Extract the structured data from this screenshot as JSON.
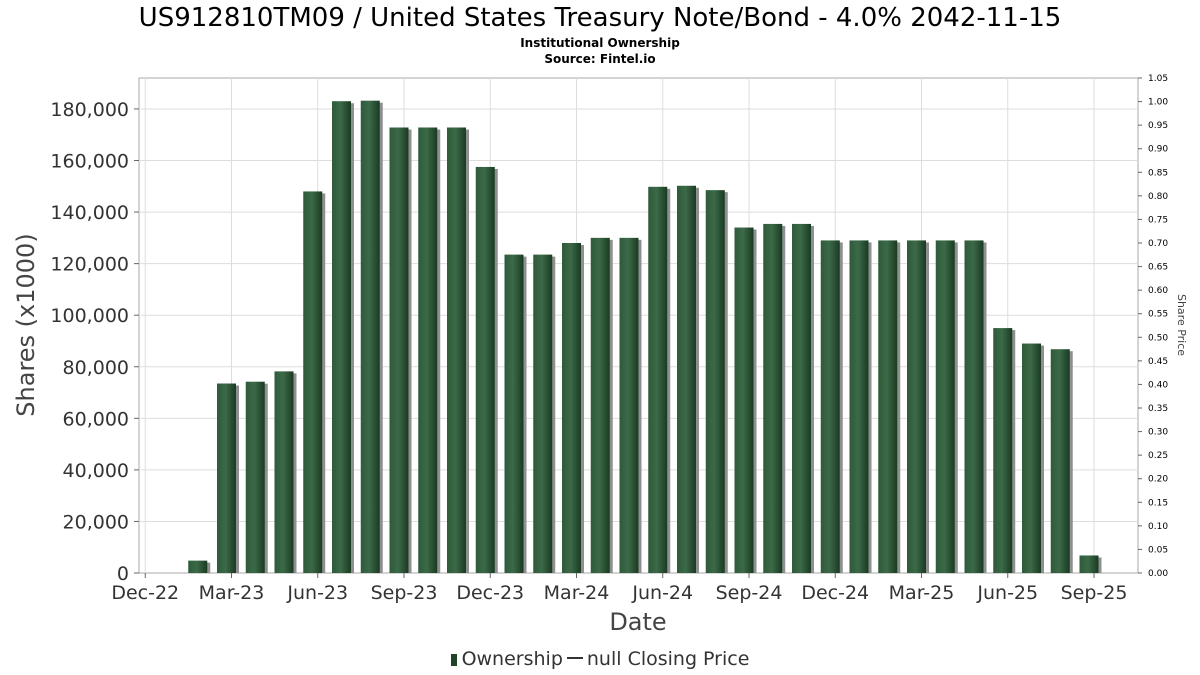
{
  "chart_data": {
    "type": "bar",
    "title": "US912810TM09 / United States Treasury Note/Bond - 4.0% 2042-11-15",
    "subtitle": "Institutional Ownership",
    "source": "Source: Fintel.io",
    "xlabel": "Date",
    "ylabel": "Shares (x1000)",
    "y2label": "Share Price",
    "ylim": [
      0,
      192000
    ],
    "y2lim": [
      0,
      1.05
    ],
    "yticks": [
      0,
      20000,
      40000,
      60000,
      80000,
      100000,
      120000,
      140000,
      160000,
      180000
    ],
    "ytick_labels": [
      "0",
      "20,000",
      "40,000",
      "60,000",
      "80,000",
      "100,000",
      "120,000",
      "140,000",
      "160,000",
      "180,000"
    ],
    "y2ticks": [
      "0.00",
      "0.05",
      "0.10",
      "0.15",
      "0.20",
      "0.25",
      "0.30",
      "0.35",
      "0.40",
      "0.45",
      "0.50",
      "0.55",
      "0.60",
      "0.65",
      "0.70",
      "0.75",
      "0.80",
      "0.85",
      "0.90",
      "0.95",
      "1.00",
      "1.05"
    ],
    "xticks": [
      "Dec-22",
      "Mar-23",
      "Jun-23",
      "Sep-23",
      "Dec-23",
      "Mar-24",
      "Jun-24",
      "Sep-24",
      "Dec-24",
      "Mar-25",
      "Jun-25",
      "Sep-25"
    ],
    "grid": true,
    "legend_position": "bottom",
    "colors": {
      "bar": "#1f4428",
      "bar_highlight": "#3c6a48",
      "shadow": "#8f8f8f",
      "grid": "#dddddd"
    },
    "series": [
      {
        "name": "Ownership",
        "values": [
          4800,
          73500,
          74200,
          78200,
          148000,
          183000,
          183200,
          172800,
          172800,
          172800,
          157500,
          123500,
          123500,
          128000,
          130000,
          130000,
          149800,
          150200,
          148500,
          134000,
          135400,
          135400,
          129000,
          129000,
          129000,
          129000,
          129000,
          129000,
          95000,
          89000,
          86800,
          6800
        ]
      }
    ],
    "legend": {
      "ownership_label": "Ownership",
      "price_label": "null Closing Price"
    }
  }
}
